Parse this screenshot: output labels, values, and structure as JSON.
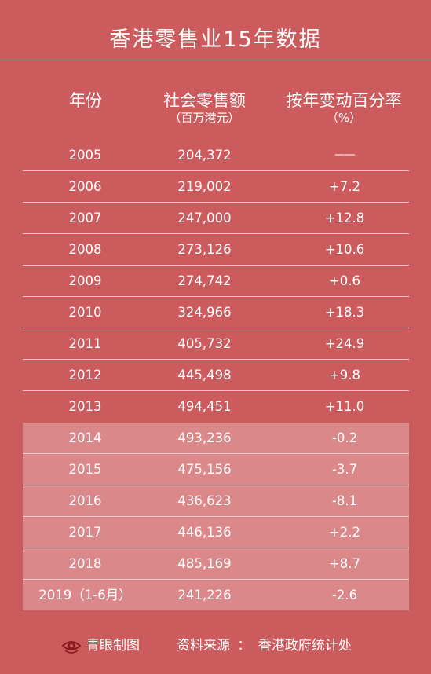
{
  "title": "香港零售业15年数据",
  "header": {
    "year": "年份",
    "sales": "社会零售额",
    "sales_unit": "（百万港元）",
    "yoy": "按年变动百分率",
    "yoy_unit": "（%）"
  },
  "rows": [
    {
      "year": "2005",
      "sales": "204,372",
      "yoy": "——"
    },
    {
      "year": "2006",
      "sales": "219,002",
      "yoy": "+7.2"
    },
    {
      "year": "2007",
      "sales": "247,000",
      "yoy": "+12.8"
    },
    {
      "year": "2008",
      "sales": "273,126",
      "yoy": "+10.6"
    },
    {
      "year": "2009",
      "sales": "274,742",
      "yoy": "+0.6"
    },
    {
      "year": "2010",
      "sales": "324,966",
      "yoy": "+18.3"
    },
    {
      "year": "2011",
      "sales": "405,732",
      "yoy": "+24.9"
    },
    {
      "year": "2012",
      "sales": "445,498",
      "yoy": "+9.8"
    },
    {
      "year": "2013",
      "sales": "494,451",
      "yoy": "+11.0"
    },
    {
      "year": "2014",
      "sales": "493,236",
      "yoy": "-0.2"
    },
    {
      "year": "2015",
      "sales": "475,156",
      "yoy": "-3.7"
    },
    {
      "year": "2016",
      "sales": "436,623",
      "yoy": "-8.1"
    },
    {
      "year": "2017",
      "sales": "446,136",
      "yoy": "+2.2"
    },
    {
      "year": "2018",
      "sales": "485,169",
      "yoy": "+8.7"
    },
    {
      "year": "2019（1-6月）",
      "sales": "241,226",
      "yoy": "-2.6"
    }
  ],
  "footer": {
    "logo_icon": "eye-logo-icon",
    "brand": "青眼制图",
    "source": "资料来源 ： 香港政府统计处"
  },
  "colors": {
    "background": "#cc5b5e",
    "text": "#ffffff"
  }
}
